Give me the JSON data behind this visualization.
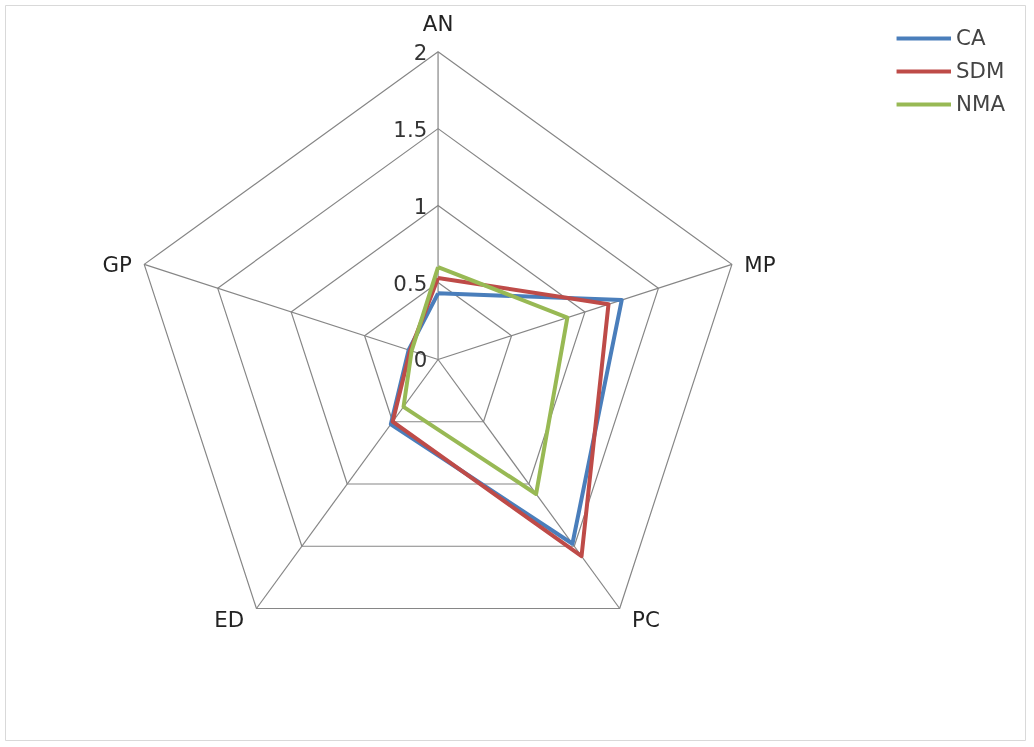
{
  "chart_data": {
    "type": "radar",
    "categories": [
      "AN",
      "MP",
      "PC",
      "ED",
      "GP"
    ],
    "ylim": [
      0,
      2
    ],
    "yticks": [
      0,
      0.5,
      1,
      1.5,
      2
    ],
    "grid": true,
    "legend": "top right",
    "line_style": "solid",
    "marker": "none",
    "series": [
      {
        "name": "CA",
        "color": "#4a7ebb",
        "values": [
          0.43,
          1.25,
          1.48,
          0.52,
          0.2
        ]
      },
      {
        "name": "SDM",
        "color": "#be4b48",
        "values": [
          0.53,
          1.16,
          1.58,
          0.5,
          0.19
        ]
      },
      {
        "name": "NMA",
        "color": "#98b954",
        "values": [
          0.6,
          0.88,
          1.08,
          0.38,
          0.18
        ]
      }
    ]
  }
}
